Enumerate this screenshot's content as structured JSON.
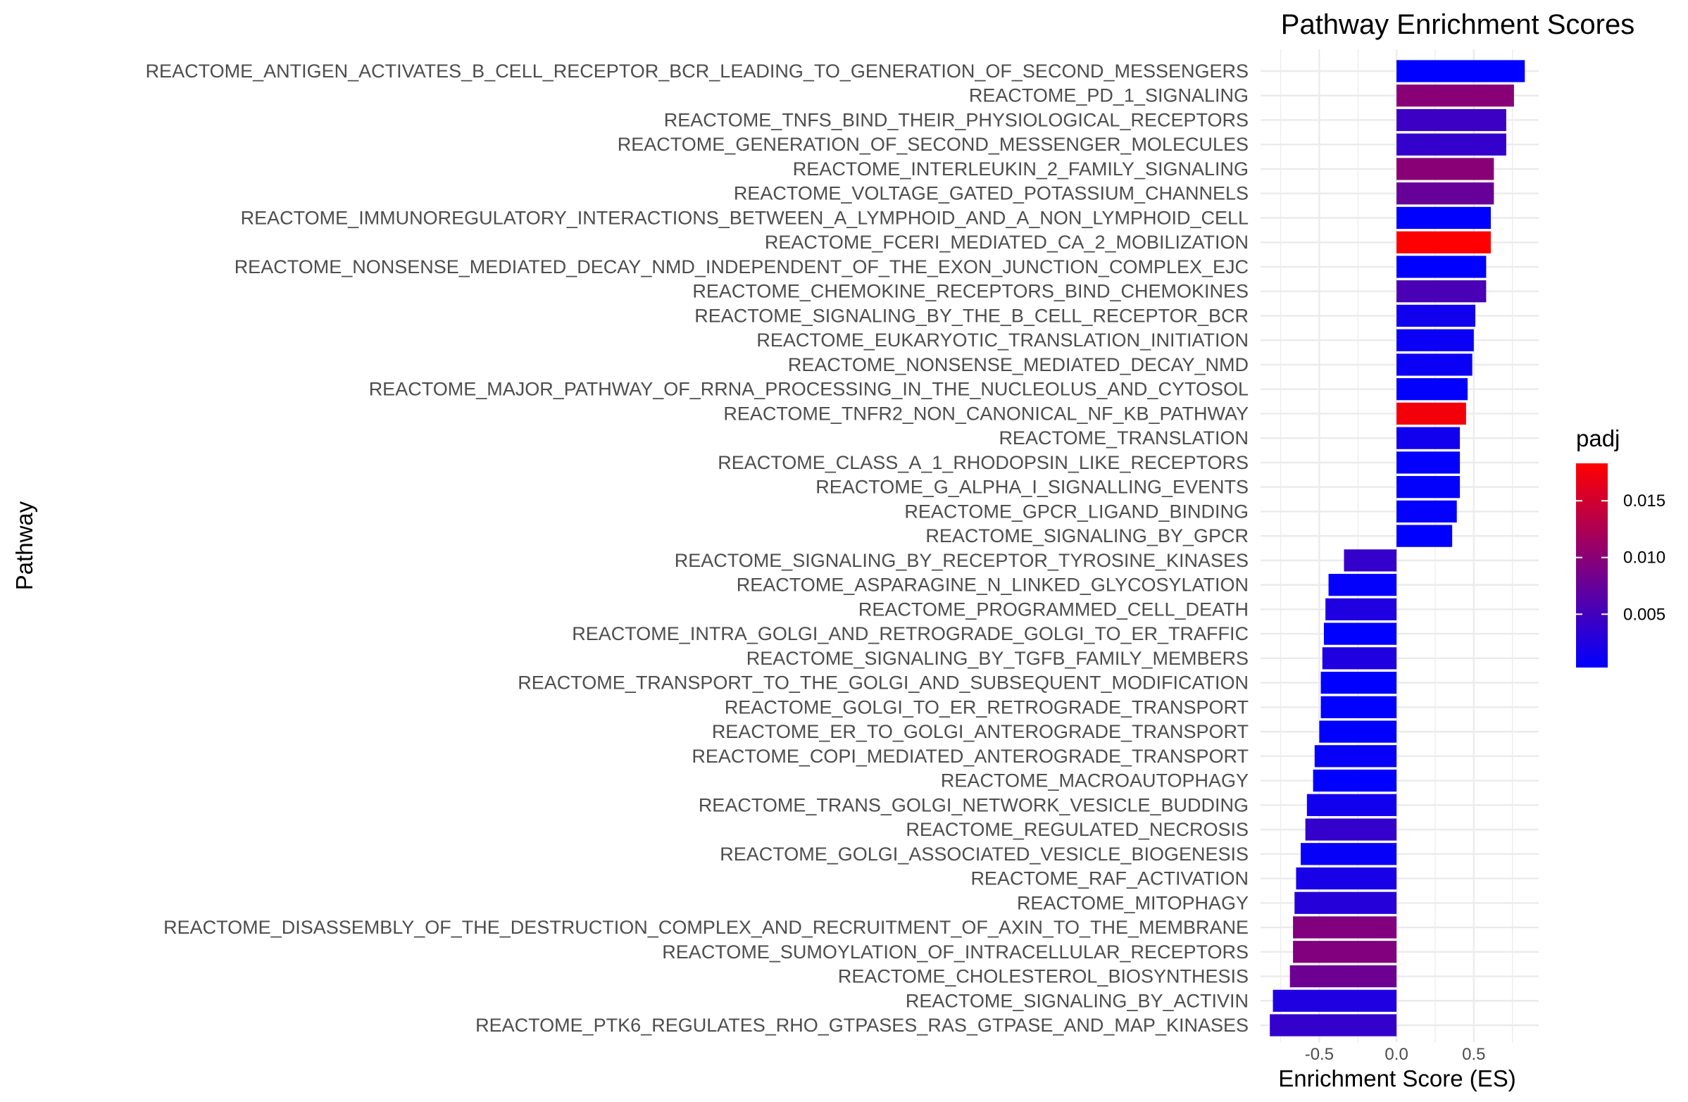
{
  "chart_data": {
    "type": "bar",
    "orientation": "horizontal",
    "title": "Pathway Enrichment Scores",
    "xlabel": "Enrichment Score (ES)",
    "ylabel": "Pathway",
    "xlim": [
      -0.88,
      0.92
    ],
    "x_ticks": [
      -0.5,
      0.0,
      0.5
    ],
    "x_tick_labels": [
      "-0.5",
      "0.0",
      "0.5"
    ],
    "grid": true,
    "legend": {
      "title": "padj",
      "position": "right",
      "type": "colorbar",
      "range": [
        0.0003,
        0.0183
      ],
      "ticks": [
        0.005,
        0.01,
        0.015
      ],
      "tick_labels": [
        "0.005",
        "0.010",
        "0.015"
      ],
      "low_color": "#0000FF",
      "high_color": "#FF0000"
    },
    "categories": [
      "REACTOME_ANTIGEN_ACTIVATES_B_CELL_RECEPTOR_BCR_LEADING_TO_GENERATION_OF_SECOND_MESSENGERS",
      "REACTOME_PD_1_SIGNALING",
      "REACTOME_TNFS_BIND_THEIR_PHYSIOLOGICAL_RECEPTORS",
      "REACTOME_GENERATION_OF_SECOND_MESSENGER_MOLECULES",
      "REACTOME_INTERLEUKIN_2_FAMILY_SIGNALING",
      "REACTOME_VOLTAGE_GATED_POTASSIUM_CHANNELS",
      "REACTOME_IMMUNOREGULATORY_INTERACTIONS_BETWEEN_A_LYMPHOID_AND_A_NON_LYMPHOID_CELL",
      "REACTOME_FCERI_MEDIATED_CA_2_MOBILIZATION",
      "REACTOME_NONSENSE_MEDIATED_DECAY_NMD_INDEPENDENT_OF_THE_EXON_JUNCTION_COMPLEX_EJC",
      "REACTOME_CHEMOKINE_RECEPTORS_BIND_CHEMOKINES",
      "REACTOME_SIGNALING_BY_THE_B_CELL_RECEPTOR_BCR",
      "REACTOME_EUKARYOTIC_TRANSLATION_INITIATION",
      "REACTOME_NONSENSE_MEDIATED_DECAY_NMD",
      "REACTOME_MAJOR_PATHWAY_OF_RRNA_PROCESSING_IN_THE_NUCLEOLUS_AND_CYTOSOL",
      "REACTOME_TNFR2_NON_CANONICAL_NF_KB_PATHWAY",
      "REACTOME_TRANSLATION",
      "REACTOME_CLASS_A_1_RHODOPSIN_LIKE_RECEPTORS",
      "REACTOME_G_ALPHA_I_SIGNALLING_EVENTS",
      "REACTOME_GPCR_LIGAND_BINDING",
      "REACTOME_SIGNALING_BY_GPCR",
      "REACTOME_SIGNALING_BY_RECEPTOR_TYROSINE_KINASES",
      "REACTOME_ASPARAGINE_N_LINKED_GLYCOSYLATION",
      "REACTOME_PROGRAMMED_CELL_DEATH",
      "REACTOME_INTRA_GOLGI_AND_RETROGRADE_GOLGI_TO_ER_TRAFFIC",
      "REACTOME_SIGNALING_BY_TGFB_FAMILY_MEMBERS",
      "REACTOME_TRANSPORT_TO_THE_GOLGI_AND_SUBSEQUENT_MODIFICATION",
      "REACTOME_GOLGI_TO_ER_RETROGRADE_TRANSPORT",
      "REACTOME_ER_TO_GOLGI_ANTEROGRADE_TRANSPORT",
      "REACTOME_COPI_MEDIATED_ANTEROGRADE_TRANSPORT",
      "REACTOME_MACROAUTOPHAGY",
      "REACTOME_TRANS_GOLGI_NETWORK_VESICLE_BUDDING",
      "REACTOME_REGULATED_NECROSIS",
      "REACTOME_GOLGI_ASSOCIATED_VESICLE_BIOGENESIS",
      "REACTOME_RAF_ACTIVATION",
      "REACTOME_MITOPHAGY",
      "REACTOME_DISASSEMBLY_OF_THE_DESTRUCTION_COMPLEX_AND_RECRUITMENT_OF_AXIN_TO_THE_MEMBRANE",
      "REACTOME_SUMOYLATION_OF_INTRACELLULAR_RECEPTORS",
      "REACTOME_CHOLESTEROL_BIOSYNTHESIS",
      "REACTOME_SIGNALING_BY_ACTIVIN",
      "REACTOME_PTK6_REGULATES_RHO_GTPASES_RAS_GTPASE_AND_MAP_KINASES"
    ],
    "values": [
      0.83,
      0.76,
      0.71,
      0.71,
      0.63,
      0.63,
      0.61,
      0.61,
      0.58,
      0.58,
      0.51,
      0.5,
      0.49,
      0.46,
      0.45,
      0.41,
      0.41,
      0.41,
      0.39,
      0.36,
      -0.34,
      -0.44,
      -0.46,
      -0.47,
      -0.48,
      -0.49,
      -0.49,
      -0.5,
      -0.53,
      -0.54,
      -0.58,
      -0.59,
      -0.62,
      -0.65,
      -0.66,
      -0.67,
      -0.67,
      -0.69,
      -0.8,
      -0.82
    ],
    "padj": [
      0.0003,
      0.01,
      0.0045,
      0.004,
      0.01,
      0.0075,
      0.0003,
      0.0183,
      0.0003,
      0.0055,
      0.0015,
      0.001,
      0.001,
      0.0005,
      0.0175,
      0.0015,
      0.0005,
      0.0005,
      0.0005,
      0.0003,
      0.004,
      0.0005,
      0.0025,
      0.0003,
      0.0025,
      0.0003,
      0.0003,
      0.0003,
      0.0008,
      0.0003,
      0.0015,
      0.004,
      0.0008,
      0.002,
      0.003,
      0.0095,
      0.0095,
      0.008,
      0.0025,
      0.004
    ]
  }
}
